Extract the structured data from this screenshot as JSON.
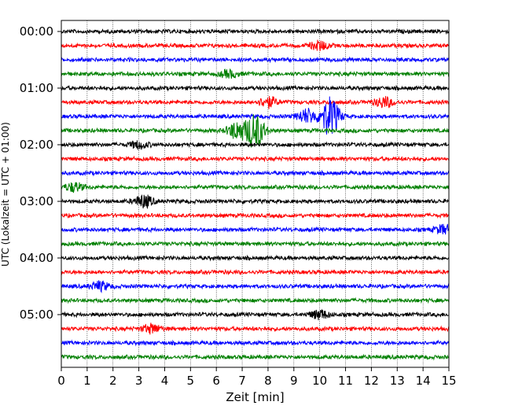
{
  "chart_data": {
    "type": "line",
    "title": "",
    "xlabel": "Zeit  [min]",
    "ylabel": "UTC (Lokalzeit = UTC + 01:00)",
    "xlim": [
      0,
      15
    ],
    "x_ticks": [
      "0",
      "1",
      "2",
      "3",
      "4",
      "5",
      "6",
      "7",
      "8",
      "9",
      "10",
      "11",
      "12",
      "13",
      "14",
      "15"
    ],
    "y_ticks": [
      "00:00",
      "01:00",
      "02:00",
      "03:00",
      "04:00",
      "05:00"
    ],
    "grid": "vertical dotted at each minute",
    "trace_interval_minutes": 15,
    "trace_count": 24,
    "trace_colors": [
      "#000000",
      "#ff0000",
      "#0000ff",
      "#008000"
    ],
    "traces": [
      {
        "start": "00:00",
        "color": "black",
        "events": []
      },
      {
        "start": "00:15",
        "color": "red",
        "events": [
          {
            "t": 10.0,
            "amp": 0.5
          }
        ]
      },
      {
        "start": "00:30",
        "color": "blue",
        "events": []
      },
      {
        "start": "00:45",
        "color": "green",
        "events": [
          {
            "t": 6.5,
            "amp": 0.4
          }
        ]
      },
      {
        "start": "01:00",
        "color": "black",
        "events": []
      },
      {
        "start": "01:15",
        "color": "red",
        "events": [
          {
            "t": 8.0,
            "amp": 0.6
          },
          {
            "t": 12.5,
            "amp": 0.6
          }
        ]
      },
      {
        "start": "01:30",
        "color": "blue",
        "events": [
          {
            "t": 9.5,
            "amp": 0.8
          },
          {
            "t": 10.4,
            "amp": 2.2
          }
        ]
      },
      {
        "start": "01:45",
        "color": "green",
        "events": [
          {
            "t": 7.5,
            "amp": 2.0
          },
          {
            "t": 6.8,
            "amp": 1.0
          }
        ]
      },
      {
        "start": "02:00",
        "color": "black",
        "events": [
          {
            "t": 3.0,
            "amp": 0.4
          }
        ]
      },
      {
        "start": "02:15",
        "color": "red",
        "events": []
      },
      {
        "start": "02:30",
        "color": "blue",
        "events": []
      },
      {
        "start": "02:45",
        "color": "green",
        "events": [
          {
            "t": 0.5,
            "amp": 0.5
          }
        ]
      },
      {
        "start": "03:00",
        "color": "black",
        "events": [
          {
            "t": 3.2,
            "amp": 0.7
          }
        ]
      },
      {
        "start": "03:15",
        "color": "red",
        "events": []
      },
      {
        "start": "03:30",
        "color": "blue",
        "events": [
          {
            "t": 14.8,
            "amp": 0.5
          }
        ]
      },
      {
        "start": "03:45",
        "color": "green",
        "events": []
      },
      {
        "start": "04:00",
        "color": "black",
        "events": []
      },
      {
        "start": "04:15",
        "color": "red",
        "events": []
      },
      {
        "start": "04:30",
        "color": "blue",
        "events": [
          {
            "t": 1.5,
            "amp": 0.5
          }
        ]
      },
      {
        "start": "04:45",
        "color": "green",
        "events": []
      },
      {
        "start": "05:00",
        "color": "black",
        "events": [
          {
            "t": 10.0,
            "amp": 0.5
          }
        ]
      },
      {
        "start": "05:15",
        "color": "red",
        "events": [
          {
            "t": 3.5,
            "amp": 0.5
          }
        ]
      },
      {
        "start": "05:30",
        "color": "blue",
        "events": []
      },
      {
        "start": "05:45",
        "color": "green",
        "events": []
      }
    ]
  }
}
